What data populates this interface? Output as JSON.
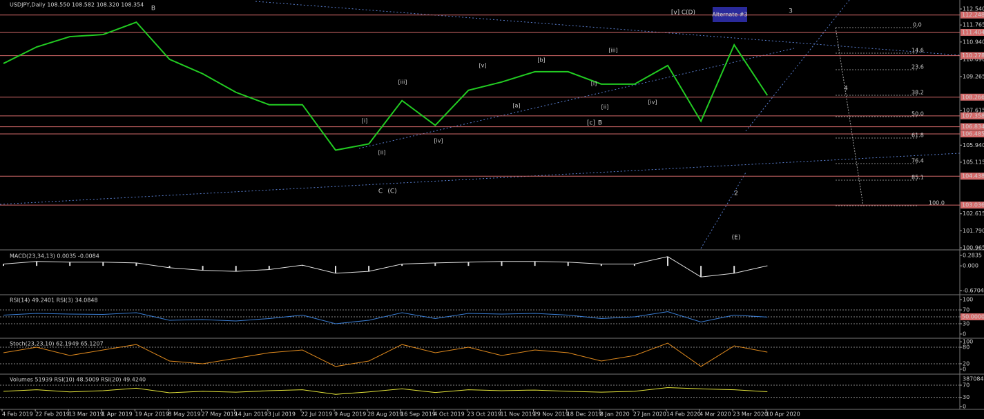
{
  "chart_data": [
    {
      "type": "line",
      "title": "USDJPY,Daily  108.550 108.582 108.320 108.354",
      "categories": [
        "4 Feb 2019",
        "22 Feb 2019",
        "13 Mar 2019",
        "1 Apr 2019",
        "19 Apr 2019",
        "8 May 2019",
        "27 May 2019",
        "14 Jun 2019",
        "3 Jul 2019",
        "22 Jul 2019",
        "9 Aug 2019",
        "28 Aug 2019",
        "16 Sep 2019",
        "4 Oct 2019",
        "23 Oct 2019",
        "11 Nov 2019",
        "29 Nov 2019",
        "18 Dec 2019",
        "8 Jan 2020",
        "27 Jan 2020",
        "14 Feb 2020",
        "4 Mar 2020",
        "23 Mar 2020",
        "10 Apr 2020"
      ],
      "values": [
        109.9,
        110.7,
        111.2,
        111.3,
        111.9,
        110.1,
        109.4,
        108.5,
        107.9,
        107.9,
        105.7,
        106.0,
        108.1,
        106.9,
        108.6,
        109.0,
        109.5,
        109.5,
        108.9,
        108.9,
        109.8,
        107.1,
        110.8,
        108.354
      ],
      "color": "#22cc22",
      "ylim": [
        100.865,
        112.975
      ],
      "yticks": [
        {
          "value": 112.54,
          "label": "112.540"
        },
        111.765,
        {
          "value": 110.94,
          "label": "110.940"
        },
        {
          "value": 110.09,
          "label": "110.090"
        },
        109.265,
        107.615,
        {
          "value": 105.94,
          "label": "105.940"
        },
        105.115,
        102.615,
        {
          "value": 101.79,
          "label": "101.790"
        },
        100.965
      ],
      "levels": [
        112.248,
        111.404,
        110.278,
        108.266,
        107.358,
        106.834,
        106.485,
        104.438,
        103.036
      ],
      "level_color": "#d46a6a",
      "annotations": [
        "B",
        "C",
        "(C)",
        "[v]",
        "C",
        "(D)",
        "Alternate #3",
        "3",
        "4",
        "2",
        "(E)",
        "B",
        "[c]",
        "[iii]",
        "[iv]",
        "[ii]",
        "[i]",
        "[iii]",
        "[iv]",
        "[v]",
        "[b]",
        "[a]",
        "[ii]",
        "[i]"
      ],
      "fib_labels": [
        "0.0",
        "14.6",
        "23.6",
        "38.2",
        "50.0",
        "61.8",
        "76.4",
        "85.1",
        "100.0"
      ]
    },
    {
      "type": "line",
      "title": "MACD(23,34,13) 0.0035 -0.0084",
      "values": [
        0.05,
        0.12,
        0.1,
        0.1,
        0.08,
        -0.05,
        -0.12,
        -0.15,
        -0.1,
        0.02,
        -0.2,
        -0.15,
        0.05,
        0.08,
        0.1,
        0.12,
        0.12,
        0.1,
        0.05,
        0.05,
        0.25,
        -0.3,
        -0.2,
        0.0035
      ],
      "color": "#e0e0e0",
      "ylim": [
        -0.7639,
        0.3956
      ],
      "yticks": [
        0.2835,
        {
          "value": 0,
          "label": "0.000"
        },
        -0.6704
      ]
    },
    {
      "type": "line",
      "title": "RSI(14) 49.2401  RSI(3) 34.0848",
      "values": [
        55,
        60,
        58,
        57,
        62,
        40,
        42,
        38,
        45,
        55,
        30,
        40,
        62,
        45,
        60,
        58,
        60,
        55,
        45,
        50,
        65,
        35,
        55,
        49.2401
      ],
      "color": "#3b7fd6",
      "ylim": [
        -10.2,
        112.2
      ],
      "yticks": [
        100,
        70,
        {
          "value": 50,
          "label": "50.0000"
        },
        30,
        0
      ]
    },
    {
      "type": "line",
      "title": "Stoch(23,23,10) 62.1949 65.1207",
      "values": [
        60,
        80,
        50,
        70,
        90,
        30,
        20,
        40,
        60,
        70,
        10,
        30,
        90,
        60,
        80,
        50,
        70,
        60,
        30,
        50,
        95,
        10,
        85,
        62.1949
      ],
      "color": "#e08a1e",
      "ylim": [
        -12.8,
        110.3
      ],
      "yticks": [
        100,
        80,
        20,
        0
      ]
    },
    {
      "type": "line",
      "title": "Volumes 51939  RSI(10) 48.5009  RSI(20) 49.4240",
      "values": [
        50,
        55,
        48,
        52,
        60,
        45,
        50,
        47,
        52,
        55,
        40,
        48,
        58,
        46,
        55,
        52,
        54,
        50,
        47,
        50,
        62,
        58,
        55,
        48.5009
      ],
      "color": "#e6e63a",
      "ylim": [
        -7,
        104
      ],
      "volume_axis_max": 387084,
      "yticks": [
        70,
        30,
        0
      ]
    }
  ]
}
